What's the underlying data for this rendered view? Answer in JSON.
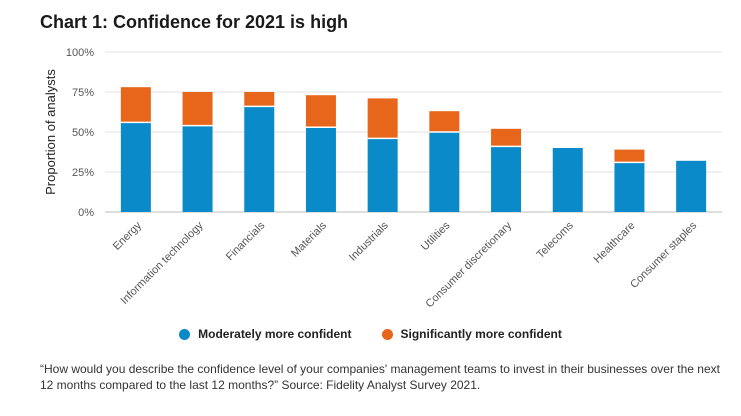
{
  "title": "Chart 1: Confidence for 2021 is high",
  "chart_data": {
    "type": "bar",
    "stacked": true,
    "title": "Chart 1: Confidence for 2021 is high",
    "ylabel": "Proportion of analysts",
    "xlabel": "",
    "ylim": [
      0,
      100
    ],
    "yticks": [
      "0%",
      "25%",
      "50%",
      "75%",
      "100%"
    ],
    "ytick_values": [
      0,
      25,
      50,
      75,
      100
    ],
    "grid": true,
    "legend_position": "bottom",
    "categories": [
      "Energy",
      "Information technology",
      "Financials",
      "Materials",
      "Industrials",
      "Utilities",
      "Consumer discretionary",
      "Telecoms",
      "Healthcare",
      "Consumer staples"
    ],
    "series": [
      {
        "name": "Moderately more confident",
        "color": "#0a8ac8",
        "values": [
          56,
          54,
          66,
          53,
          46,
          50,
          41,
          40,
          31,
          32
        ]
      },
      {
        "name": "Significantly more confident",
        "color": "#e8661c",
        "values": [
          22,
          21,
          9,
          20,
          25,
          13,
          11,
          0,
          8,
          0
        ]
      }
    ]
  },
  "footnote": "“How would you describe the confidence level of your companies' management teams to invest in their businesses over the next 12 months compared to the last 12 months?” Source: Fidelity Analyst Survey 2021."
}
